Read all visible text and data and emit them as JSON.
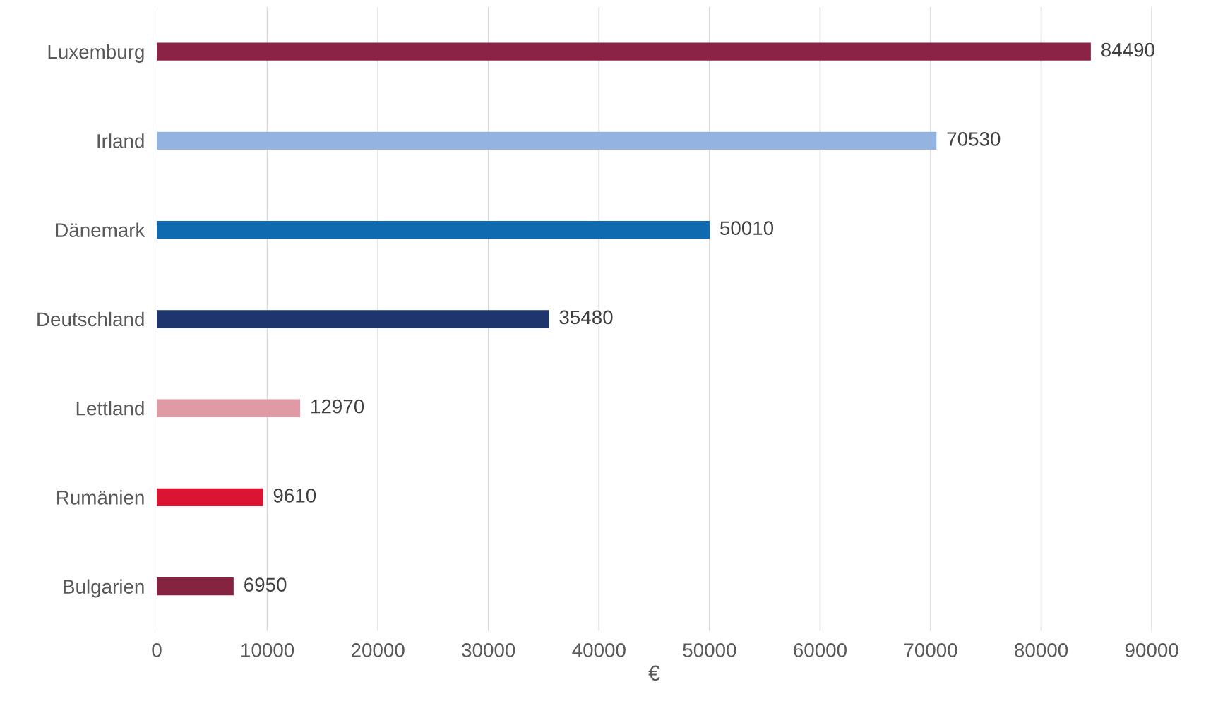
{
  "chart_data": {
    "type": "bar",
    "orientation": "horizontal",
    "xlabel": "€",
    "categories": [
      "Luxemburg",
      "Irland",
      "Dänemark",
      "Deutschland",
      "Lettland",
      "Rumänien",
      "Bulgarien"
    ],
    "values": [
      84490,
      70530,
      50010,
      35480,
      12970,
      9610,
      6950
    ],
    "colors": [
      "#8b2346",
      "#95b3e0",
      "#0f6ab0",
      "#1e356e",
      "#e09aa6",
      "#dc1433",
      "#862341"
    ],
    "xlim": [
      0,
      90000
    ],
    "xticks": [
      0,
      10000,
      20000,
      30000,
      40000,
      50000,
      60000,
      70000,
      80000,
      90000
    ],
    "grid": "x",
    "data_labels": true
  }
}
